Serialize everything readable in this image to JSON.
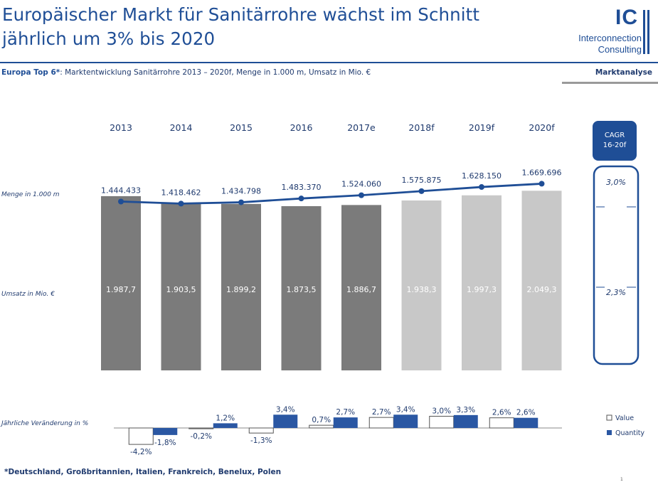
{
  "header": {
    "title_line1": "Europäischer Markt für Sanitärrohre wächst im Schnitt",
    "title_line2": "jährlich um 3% bis 2020",
    "logo_ic": "IC",
    "logo_line1": "Interconnection",
    "logo_line2": "Consulting",
    "subtitle_bold": "Europa Top 6*",
    "subtitle_rest": ": Marktentwicklung Sanitärrohre 2013 – 2020f, Menge in 1.000 m, Umsatz in Mio. €",
    "section_tag": "Marktanalyse"
  },
  "footer": {
    "footnote": "*Deutschland, Großbritannien, Italien, Frankreich, Benelux, Polen",
    "page_number": "1"
  },
  "colors": {
    "brand": "#1f4e96",
    "actual_bar": "#7b7b7b",
    "forecast_bar": "#c8c8c8",
    "quantity_bar": "#2a57a3"
  },
  "chart_data": [
    {
      "type": "bar",
      "categories": [
        "2013",
        "2014",
        "2015",
        "2016",
        "2017e",
        "2018f",
        "2019f",
        "2020f"
      ],
      "series": [
        {
          "name": "Umsatz in Mio. €",
          "values": [
            1987.7,
            1903.5,
            1899.2,
            1873.5,
            1886.7,
            1938.3,
            1997.3,
            2049.3
          ],
          "labels": [
            "1.987,7",
            "1.903,5",
            "1.899,2",
            "1.873,5",
            "1.886,7",
            "1.938,3",
            "1.997,3",
            "2.049,3"
          ],
          "forecast": [
            false,
            false,
            false,
            false,
            false,
            true,
            true,
            true
          ]
        },
        {
          "name": "Menge in 1.000 m",
          "type": "line",
          "values": [
            1444433,
            1418462,
            1434798,
            1483370,
            1524060,
            1575875,
            1628150,
            1669696
          ],
          "labels": [
            "1.444.433",
            "1.418.462",
            "1.434.798",
            "1.483.370",
            "1.524.060",
            "1.575.875",
            "1.628.150",
            "1.669.696"
          ]
        }
      ],
      "bar_ylim": [
        0,
        2200
      ]
    },
    {
      "type": "bar",
      "ylabel": "Jährliche Veränderung in %",
      "categories": [
        "2014",
        "2015",
        "2016",
        "2017e",
        "2018f",
        "2019f",
        "2020f"
      ],
      "series": [
        {
          "name": "Value",
          "values": [
            -4.2,
            -0.2,
            -1.3,
            0.7,
            2.7,
            3.0,
            2.6
          ],
          "labels": [
            "-4,2%",
            "-0,2%",
            "-1,3%",
            "0,7%",
            "2,7%",
            "3,0%",
            "2,6%"
          ]
        },
        {
          "name": "Quantity",
          "values": [
            -1.8,
            1.2,
            3.4,
            2.7,
            3.4,
            3.3,
            2.6
          ],
          "labels": [
            "-1,8%",
            "1,2%",
            "3,4%",
            "2,7%",
            "3,4%",
            "3,3%",
            "2,6%"
          ]
        }
      ],
      "legend_position": "right"
    }
  ],
  "row_labels": {
    "quantity": "Menge in 1.000 m",
    "revenue": "Umsatz in Mio. €",
    "change": "Jährliche Veränderung in %"
  },
  "cagr": {
    "title_line1": "CAGR",
    "title_line2": "16-20f",
    "quantity": "3,0%",
    "revenue": "2,3%"
  }
}
